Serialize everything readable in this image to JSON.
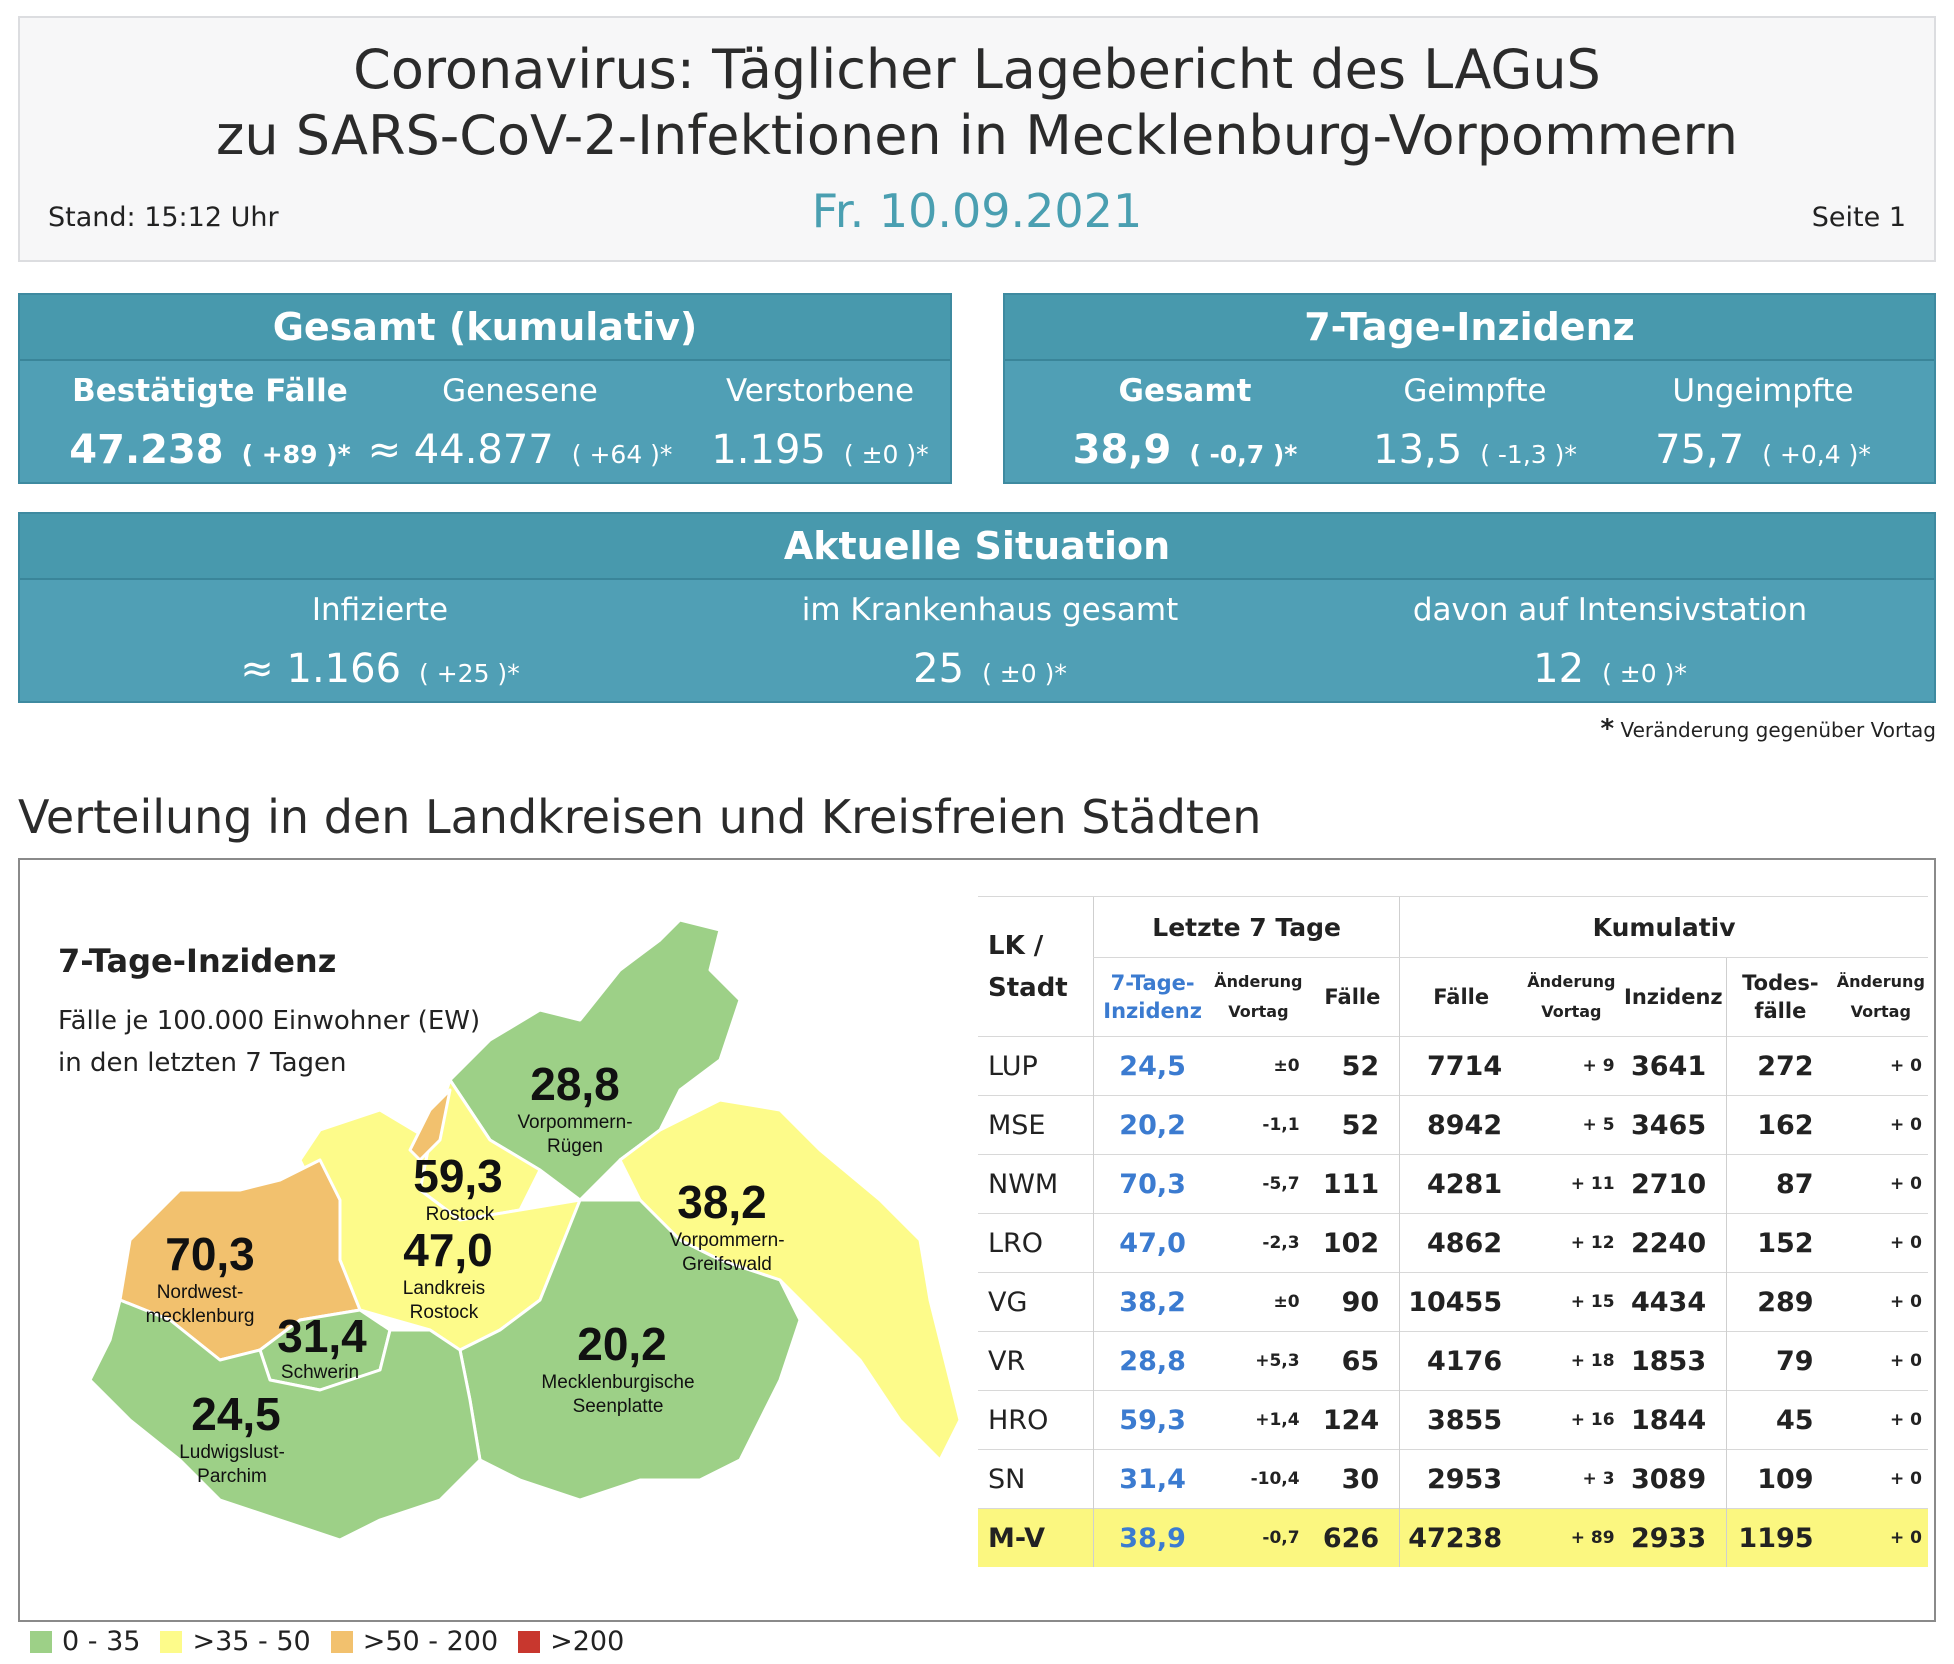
{
  "header": {
    "title_line1": "Coronavirus: Täglicher Lagebericht des LAGuS",
    "title_line2": "zu SARS-CoV-2-Infektionen in Mecklenburg-Vorpommern",
    "date": "Fr. 10.09.2021",
    "stand": "Stand: 15:12 Uhr",
    "seite": "Seite 1"
  },
  "gesamt": {
    "title": "Gesamt (kumulativ)",
    "items": [
      {
        "label": "Bestätigte Fälle",
        "value": "47.238",
        "change": "( +89 )*"
      },
      {
        "label": "Genesene",
        "value": "≈ 44.877",
        "change": "( +64 )*"
      },
      {
        "label": "Verstorbene",
        "value": "1.195",
        "change": "( ±0 )*"
      }
    ]
  },
  "inzidenz": {
    "title": "7-Tage-Inzidenz",
    "items": [
      {
        "label": "Gesamt",
        "value": "38,9",
        "change": "( -0,7 )*"
      },
      {
        "label": "Geimpfte",
        "value": "13,5",
        "change": "( -1,3 )*"
      },
      {
        "label": "Ungeimpfte",
        "value": "75,7",
        "change": "( +0,4 )*"
      }
    ]
  },
  "aktuell": {
    "title": "Aktuelle Situation",
    "items": [
      {
        "label": "Infizierte",
        "value": "≈ 1.166",
        "change": "( +25 )*"
      },
      {
        "label": "im Krankenhaus gesamt",
        "value": "25",
        "change": "( ±0 )*"
      },
      {
        "label": "davon auf Intensivstation",
        "value": "12",
        "change": "( ±0 )*"
      }
    ]
  },
  "footnote": {
    "star": "*",
    "text": "Veränderung gegenüber Vortag"
  },
  "section_title": "Verteilung in den Landkreisen und Kreisfreien Städten",
  "map": {
    "title": "7-Tage-Inzidenz",
    "subtitle_line1": "Fälle je 100.000 Einwohner (EW)",
    "subtitle_line2": "in den letzten 7 Tagen",
    "colors": {
      "green": "#9dd087",
      "yellow": "#fdfb8a",
      "orange": "#f2c16e",
      "red": "#c8372e"
    },
    "regions": [
      {
        "value": "28,8",
        "name1": "Vorpommern-",
        "name2": "Rügen"
      },
      {
        "value": "59,3",
        "name1": "Rostock",
        "name2": ""
      },
      {
        "value": "38,2",
        "name1": "Vorpommern-",
        "name2": "Greifswald"
      },
      {
        "value": "70,3",
        "name1": "Nordwest-",
        "name2": "mecklenburg"
      },
      {
        "value": "47,0",
        "name1": "Landkreis",
        "name2": "Rostock"
      },
      {
        "value": "31,4",
        "name1": "Schwerin",
        "name2": ""
      },
      {
        "value": "20,2",
        "name1": "Mecklenburgische",
        "name2": "Seenplatte"
      },
      {
        "value": "24,5",
        "name1": "Ludwigslust-",
        "name2": "Parchim"
      }
    ]
  },
  "legend": [
    {
      "label": "0 - 35",
      "color": "#9dd087"
    },
    {
      "label": ">35 - 50",
      "color": "#fdfb8a"
    },
    {
      "label": ">50 - 200",
      "color": "#f2c16e"
    },
    {
      "label": ">200",
      "color": "#c8372e"
    }
  ],
  "table": {
    "h_lk": "LK /",
    "h_stadt": "Stadt",
    "h_group1": "Letzte 7 Tage",
    "h_group2": "Kumulativ",
    "h_inz1": "7-Tage-",
    "h_inz2": "Inzidenz",
    "h_aend1": "Änderung",
    "h_aend2": "Vortag",
    "h_faelle": "Fälle",
    "h_inzidenz": "Inzidenz",
    "h_todes1": "Todes-",
    "h_todes2": "fälle",
    "rows": [
      {
        "lk": "LUP",
        "inz": "24,5",
        "chg": "±0",
        "f7": "52",
        "faelle": "7714",
        "fchg": "+ 9",
        "inzk": "3641",
        "tod": "272",
        "tchg": "+ 0"
      },
      {
        "lk": "MSE",
        "inz": "20,2",
        "chg": "-1,1",
        "f7": "52",
        "faelle": "8942",
        "fchg": "+ 5",
        "inzk": "3465",
        "tod": "162",
        "tchg": "+ 0"
      },
      {
        "lk": "NWM",
        "inz": "70,3",
        "chg": "-5,7",
        "f7": "111",
        "faelle": "4281",
        "fchg": "+ 11",
        "inzk": "2710",
        "tod": "87",
        "tchg": "+ 0"
      },
      {
        "lk": "LRO",
        "inz": "47,0",
        "chg": "-2,3",
        "f7": "102",
        "faelle": "4862",
        "fchg": "+ 12",
        "inzk": "2240",
        "tod": "152",
        "tchg": "+ 0"
      },
      {
        "lk": "VG",
        "inz": "38,2",
        "chg": "±0",
        "f7": "90",
        "faelle": "10455",
        "fchg": "+ 15",
        "inzk": "4434",
        "tod": "289",
        "tchg": "+ 0"
      },
      {
        "lk": "VR",
        "inz": "28,8",
        "chg": "+5,3",
        "f7": "65",
        "faelle": "4176",
        "fchg": "+ 18",
        "inzk": "1853",
        "tod": "79",
        "tchg": "+ 0"
      },
      {
        "lk": "HRO",
        "inz": "59,3",
        "chg": "+1,4",
        "f7": "124",
        "faelle": "3855",
        "fchg": "+ 16",
        "inzk": "1844",
        "tod": "45",
        "tchg": "+ 0"
      },
      {
        "lk": "SN",
        "inz": "31,4",
        "chg": "-10,4",
        "f7": "30",
        "faelle": "2953",
        "fchg": "+ 3",
        "inzk": "3089",
        "tod": "109",
        "tchg": "+ 0"
      },
      {
        "lk": "M-V",
        "inz": "38,9",
        "chg": "-0,7",
        "f7": "626",
        "faelle": "47238",
        "fchg": "+ 89",
        "inzk": "2933",
        "tod": "1195",
        "tchg": "+ 0"
      }
    ]
  }
}
